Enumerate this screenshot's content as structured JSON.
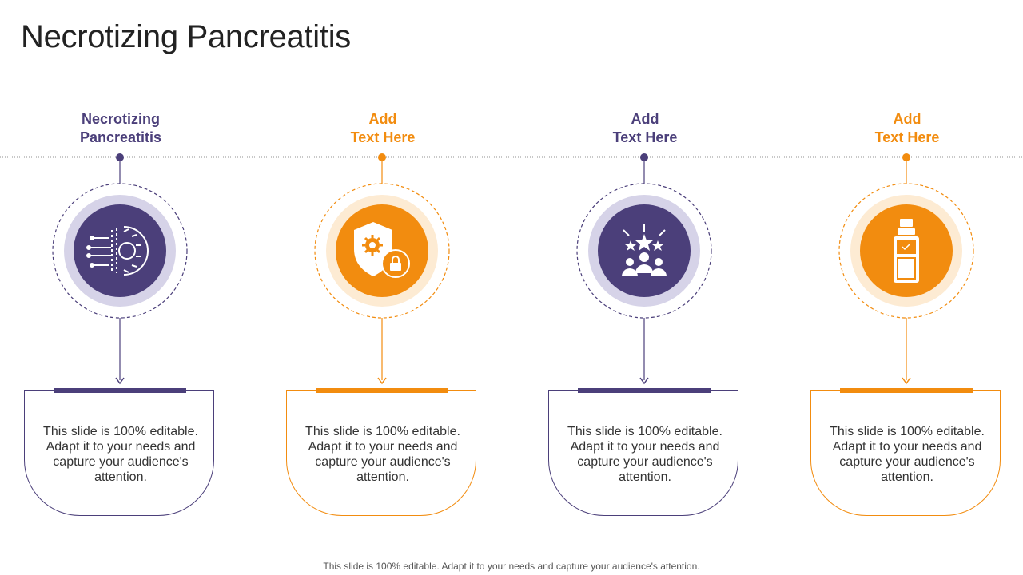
{
  "slide": {
    "title": "Necrotizing Pancreatitis",
    "footer": "This slide is 100% editable. Adapt it to your needs and capture your audience's attention."
  },
  "colors": {
    "purple": "#4b3f7a",
    "orange": "#f28c0f",
    "purple_ring": "#d6d3e8",
    "orange_ring": "#fdebd3"
  },
  "columns": [
    {
      "heading_line1": "Necrotizing",
      "heading_line2": "Pancreatitis",
      "body": "This slide is 100% editable. Adapt it to your needs and capture your audience's attention.",
      "accent": "purple",
      "icon": "digital-gear-icon"
    },
    {
      "heading_line1": "Add",
      "heading_line2": "Text Here",
      "body": "This slide is 100% editable. Adapt it to your needs and capture your audience's attention.",
      "accent": "orange",
      "icon": "shield-lock-gear-icon"
    },
    {
      "heading_line1": "Add",
      "heading_line2": "Text Here",
      "body": "This slide is 100% editable. Adapt it to your needs and capture your audience's attention.",
      "accent": "purple",
      "icon": "team-stars-icon"
    },
    {
      "heading_line1": "Add",
      "heading_line2": "Text Here",
      "body": "This slide is 100% editable. Adapt it to your needs and capture your audience's attention.",
      "accent": "orange",
      "icon": "bottle-icon"
    }
  ]
}
